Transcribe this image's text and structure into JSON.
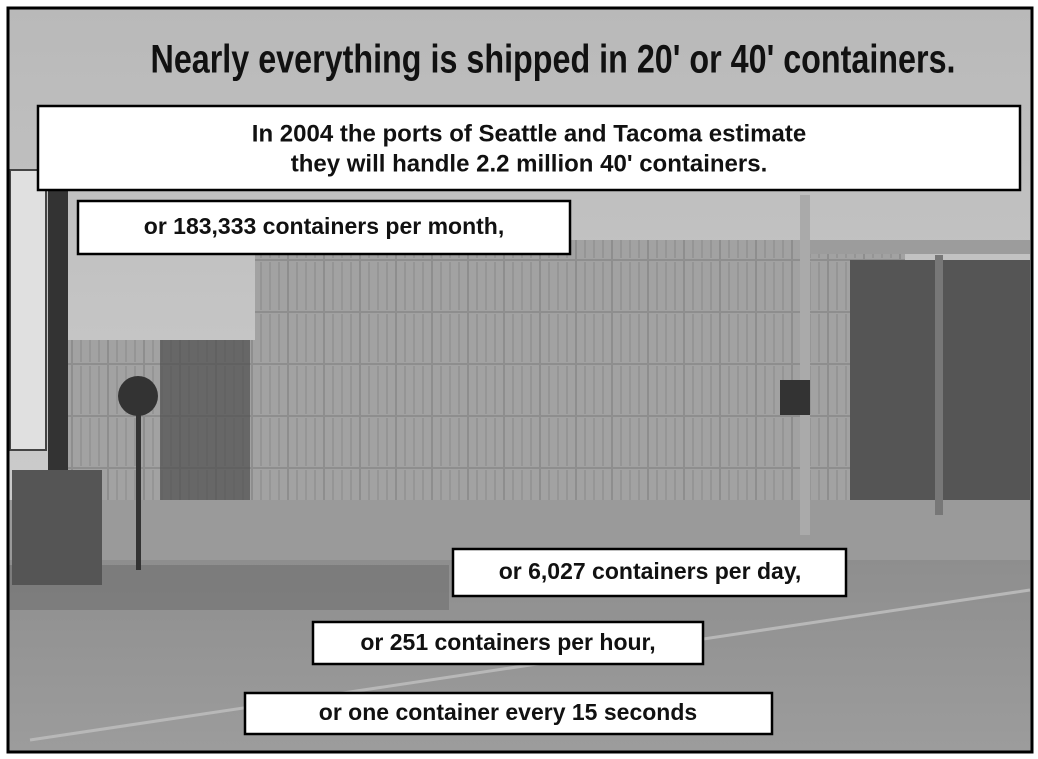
{
  "title": "Nearly everything is shipped in 20' or 40' containers.",
  "intro": {
    "lines": [
      "In 2004 the ports of Seattle and Tacoma estimate",
      "they will handle 2.2 million 40' containers."
    ]
  },
  "rates": [
    "or 183,333 containers per month,",
    "or 6,027 containers per day,",
    "or 251 containers per hour,",
    "or one container every 15 seconds"
  ]
}
